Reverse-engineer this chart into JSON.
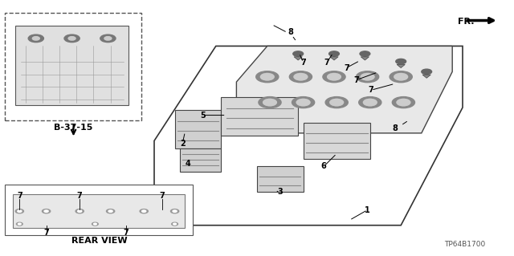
{
  "bg_color": "#ffffff",
  "part_number": "TP64B1700",
  "fr_label": "FR.",
  "ref_label": "B-37-15",
  "rear_view_label": "REAR VIEW"
}
